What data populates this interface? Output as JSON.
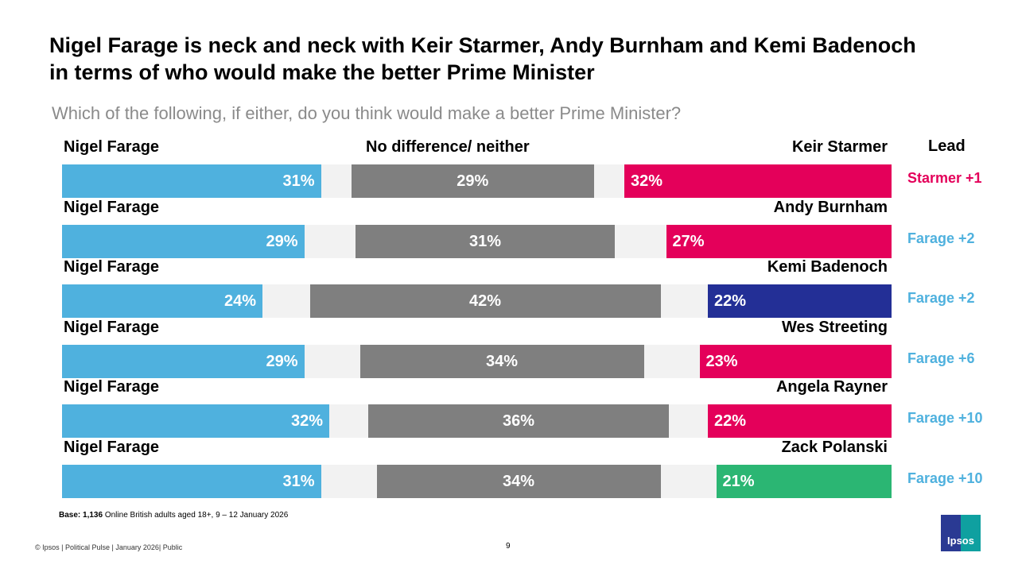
{
  "title": "Nigel Farage is neck and neck with Keir Starmer, Andy Burnham and Kemi Badenoch in terms of who would make the better Prime Minister",
  "subtitle": "Which of the following, if either, do you think would make a better Prime Minister?",
  "headers": {
    "middle": "No difference/ neither",
    "lead": "Lead"
  },
  "colors": {
    "farage": "#4fb1de",
    "neither": "#7f7f7f",
    "labour": "#e4005a",
    "conservative": "#232f96",
    "green": "#2bb673",
    "lead_farage": "#4fb1de",
    "lead_starmer": "#e4005a"
  },
  "rows": [
    {
      "left": "Nigel Farage",
      "right": "Keir Starmer",
      "farage": 31,
      "neither": 29,
      "other": 32,
      "farage_label": "31%",
      "neither_label": "29%",
      "other_label": "32%",
      "other_color": "labour",
      "lead": "Starmer +1",
      "lead_color": "lead_starmer"
    },
    {
      "left": "Nigel Farage",
      "right": "Andy Burnham",
      "farage": 29,
      "neither": 31,
      "other": 27,
      "farage_label": "29%",
      "neither_label": "31%",
      "other_label": "27%",
      "other_color": "labour",
      "lead": "Farage +2",
      "lead_color": "lead_farage"
    },
    {
      "left": "Nigel Farage",
      "right": "Kemi Badenoch",
      "farage": 24,
      "neither": 42,
      "other": 22,
      "farage_label": "24%",
      "neither_label": "42%",
      "other_label": "22%",
      "other_color": "conservative",
      "lead": "Farage +2",
      "lead_color": "lead_farage"
    },
    {
      "left": "Nigel Farage",
      "right": "Wes Streeting",
      "farage": 29,
      "neither": 34,
      "other": 23,
      "farage_label": "29%",
      "neither_label": "34%",
      "other_label": "23%",
      "other_color": "labour",
      "lead": "Farage +6",
      "lead_color": "lead_farage"
    },
    {
      "left": "Nigel Farage",
      "right": "Angela Rayner",
      "farage": 32,
      "neither": 36,
      "other": 22,
      "farage_label": "32%",
      "neither_label": "36%",
      "other_label": "22%",
      "other_color": "labour",
      "lead": "Farage +10",
      "lead_color": "lead_farage"
    },
    {
      "left": "Nigel Farage",
      "right": "Zack Polanski",
      "farage": 31,
      "neither": 34,
      "other": 21,
      "farage_label": "31%",
      "neither_label": "34%",
      "other_label": "21%",
      "other_color": "green",
      "lead": "Farage +10",
      "lead_color": "lead_farage"
    }
  ],
  "base": {
    "label": "Base:",
    "count": "1,136",
    "text": "Online British adults aged 18+,  9 – 12  January 2026"
  },
  "footer": "© Ipsos | Political Pulse | January 2026| Public",
  "page_number": "9",
  "logo_text": "Ipsos"
}
